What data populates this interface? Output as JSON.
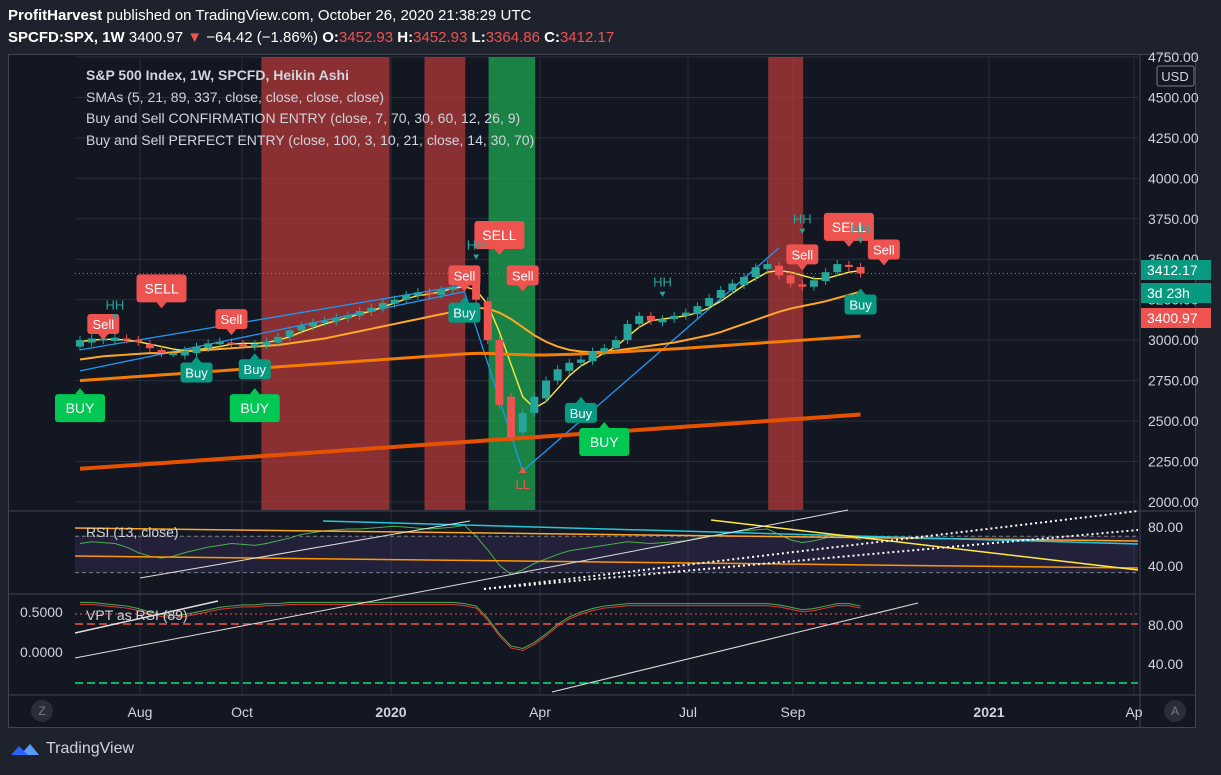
{
  "header": {
    "publisher": "ProfitHarvest",
    "published_text": "published on TradingView.com, October 26, 2020 21:38:29 UTC",
    "symbol": "SPCFD:SPX, 1W",
    "last": "3400.97",
    "change": "−64.42 (−1.86%)",
    "o_label": "O:",
    "o": "3452.93",
    "h_label": "H:",
    "h": "3452.93",
    "l_label": "L:",
    "l": "3364.86",
    "c_label": "C:",
    "c": "3412.17"
  },
  "legend": {
    "line1": "S&P 500 Index, 1W, SPCFD, Heikin Ashi",
    "line2": "SMAs (5, 21, 89, 337, close, close, close, close)",
    "line3": "Buy and Sell CONFIRMATION ENTRY (close, 7, 70, 30, 60, 12, 26, 9)",
    "line4": "Buy and Sell PERFECT ENTRY (close, 100, 3, 10, 21, close, 14, 30, 70)"
  },
  "rsi_label": "RSI (13, close)",
  "vpt_label": "VPT as RSI (89)",
  "footer": {
    "brand": "TradingView"
  },
  "buttons": {
    "z": "Z",
    "a": "A"
  },
  "price_tags": {
    "close": "3412.17",
    "countdown": "3d 23h",
    "last": "3400.97"
  },
  "colors": {
    "background": "#131722",
    "up": "#26a69a",
    "down": "#ef5350",
    "sma5": "#ffeb3b",
    "sma21": "#ffa726",
    "sma89": "#f57c00",
    "sma337": "#e65100",
    "sell_zone": "#b33a3a",
    "buy_zone": "#1e9e4f",
    "trend": "#2196f3"
  },
  "chart_data": {
    "type": "candlestick",
    "title": "S&P 500 Index, 1W, SPCFD, Heikin Ashi",
    "x_ticks": [
      "Aug",
      "Oct",
      "2020",
      "Apr",
      "Jul",
      "Sep",
      "2021",
      "Ap"
    ],
    "y_ticks": [
      2000,
      2250,
      2500,
      2750,
      3000,
      3250,
      3500,
      3750,
      4000,
      4250,
      4500,
      4750
    ],
    "ylim": [
      1950,
      4750
    ],
    "candles_note": "weekly Heikin Ashi candles, Jul 2019 – Oct 2020",
    "candles": [
      [
        2960,
        3000
      ],
      [
        2985,
        3010
      ],
      [
        3000,
        3010
      ],
      [
        2995,
        3015
      ],
      [
        3010,
        3005
      ],
      [
        3000,
        2990
      ],
      [
        2975,
        2950
      ],
      [
        2940,
        2920
      ],
      [
        2920,
        2920
      ],
      [
        2905,
        2935
      ],
      [
        2920,
        2960
      ],
      [
        2950,
        2980
      ],
      [
        2975,
        2990
      ],
      [
        2985,
        2980
      ],
      [
        2975,
        2970
      ],
      [
        2960,
        2975
      ],
      [
        2970,
        2990
      ],
      [
        2985,
        3020
      ],
      [
        3020,
        3060
      ],
      [
        3060,
        3090
      ],
      [
        3085,
        3110
      ],
      [
        3110,
        3120
      ],
      [
        3115,
        3140
      ],
      [
        3135,
        3150
      ],
      [
        3150,
        3180
      ],
      [
        3175,
        3200
      ],
      [
        3195,
        3230
      ],
      [
        3225,
        3250
      ],
      [
        3250,
        3280
      ],
      [
        3275,
        3295
      ],
      [
        3295,
        3285
      ],
      [
        3280,
        3310
      ],
      [
        3310,
        3330
      ],
      [
        3330,
        3370
      ],
      [
        3360,
        3250
      ],
      [
        3240,
        3000
      ],
      [
        3000,
        2600
      ],
      [
        2650,
        2400
      ],
      [
        2430,
        2550
      ],
      [
        2550,
        2650
      ],
      [
        2640,
        2750
      ],
      [
        2750,
        2820
      ],
      [
        2810,
        2860
      ],
      [
        2860,
        2880
      ],
      [
        2870,
        2930
      ],
      [
        2930,
        2950
      ],
      [
        2950,
        3000
      ],
      [
        3000,
        3100
      ],
      [
        3100,
        3150
      ],
      [
        3150,
        3120
      ],
      [
        3110,
        3130
      ],
      [
        3130,
        3150
      ],
      [
        3150,
        3170
      ],
      [
        3160,
        3210
      ],
      [
        3210,
        3260
      ],
      [
        3260,
        3310
      ],
      [
        3310,
        3350
      ],
      [
        3340,
        3390
      ],
      [
        3390,
        3450
      ],
      [
        3440,
        3470
      ],
      [
        3460,
        3400
      ],
      [
        3400,
        3350
      ],
      [
        3345,
        3330
      ],
      [
        3330,
        3370
      ],
      [
        3365,
        3420
      ],
      [
        3420,
        3470
      ],
      [
        3465,
        3452
      ],
      [
        3452,
        3412
      ]
    ],
    "sma_series": [
      {
        "name": "SMA 5",
        "values": [
          2990,
          3000,
          3005,
          3005,
          3000,
          2990,
          2975,
          2960,
          2945,
          2935,
          2940,
          2950,
          2960,
          2975,
          2980,
          2980,
          2985,
          3000,
          3020,
          3050,
          3075,
          3100,
          3120,
          3140,
          3160,
          3180,
          3205,
          3230,
          3255,
          3275,
          3285,
          3300,
          3320,
          3330,
          3310,
          3220,
          3050,
          2850,
          2650,
          2580,
          2620,
          2700,
          2780,
          2840,
          2880,
          2920,
          2960,
          3020,
          3080,
          3120,
          3130,
          3140,
          3150,
          3170,
          3200,
          3240,
          3290,
          3340,
          3380,
          3420,
          3430,
          3420,
          3400,
          3380,
          3380,
          3400,
          3420,
          3430
        ]
      },
      {
        "name": "SMA 21",
        "values": [
          2880,
          2890,
          2900,
          2905,
          2910,
          2915,
          2920,
          2920,
          2925,
          2930,
          2935,
          2940,
          2945,
          2950,
          2955,
          2960,
          2965,
          2970,
          2980,
          2990,
          3000,
          3010,
          3025,
          3040,
          3055,
          3070,
          3085,
          3100,
          3115,
          3130,
          3145,
          3160,
          3175,
          3190,
          3200,
          3195,
          3170,
          3130,
          3080,
          3030,
          2990,
          2960,
          2940,
          2930,
          2925,
          2930,
          2935,
          2945,
          2955,
          2965,
          2975,
          2985,
          3000,
          3015,
          3030,
          3050,
          3075,
          3100,
          3125,
          3150,
          3175,
          3195,
          3210,
          3225,
          3240,
          3260,
          3280,
          3300
        ]
      },
      {
        "name": "SMA 89",
        "values": [
          2750,
          2755,
          2760,
          2765,
          2770,
          2775,
          2780,
          2785,
          2790,
          2795,
          2800,
          2805,
          2810,
          2815,
          2820,
          2825,
          2830,
          2835,
          2840,
          2845,
          2850,
          2855,
          2860,
          2865,
          2870,
          2875,
          2880,
          2885,
          2890,
          2895,
          2900,
          2905,
          2910,
          2915,
          2918,
          2918,
          2915,
          2912,
          2910,
          2908,
          2908,
          2910,
          2912,
          2915,
          2918,
          2922,
          2926,
          2930,
          2934,
          2938,
          2942,
          2946,
          2950,
          2955,
          2960,
          2965,
          2970,
          2975,
          2980,
          2985,
          2990,
          2995,
          3000,
          3005,
          3010,
          3015,
          3020,
          3025
        ]
      },
      {
        "name": "SMA 337",
        "values": [
          2205,
          2210,
          2215,
          2220,
          2225,
          2230,
          2235,
          2240,
          2245,
          2250,
          2255,
          2260,
          2265,
          2270,
          2275,
          2280,
          2285,
          2290,
          2295,
          2300,
          2305,
          2310,
          2315,
          2320,
          2325,
          2330,
          2335,
          2340,
          2345,
          2350,
          2355,
          2360,
          2365,
          2370,
          2375,
          2380,
          2385,
          2390,
          2395,
          2400,
          2405,
          2410,
          2415,
          2420,
          2425,
          2430,
          2435,
          2440,
          2445,
          2450,
          2455,
          2460,
          2465,
          2470,
          2475,
          2480,
          2485,
          2490,
          2495,
          2500,
          2505,
          2510,
          2515,
          2520,
          2525,
          2530,
          2535,
          2540
        ]
      }
    ],
    "signals": [
      {
        "text": "SELL",
        "kind": "sell-big",
        "i": 7,
        "price": 3320
      },
      {
        "text": "Sell",
        "kind": "sell",
        "i": 13,
        "price": 3130
      },
      {
        "text": "Sell",
        "kind": "sell",
        "i": 33,
        "price": 3400
      },
      {
        "text": "SELL",
        "kind": "sell-big",
        "i": 36,
        "price": 3650
      },
      {
        "text": "Sell",
        "kind": "sell",
        "i": 38,
        "price": 3400
      },
      {
        "text": "Sell",
        "kind": "sell",
        "i": 2,
        "price": 3100
      },
      {
        "text": "Buy",
        "kind": "buy",
        "i": 10,
        "price": 2800
      },
      {
        "text": "Buy",
        "kind": "buy",
        "i": 15,
        "price": 2820
      },
      {
        "text": "BUY",
        "kind": "buy-big",
        "i": 15,
        "price": 2580
      },
      {
        "text": "BUY",
        "kind": "buy-big",
        "i": 0,
        "price": 2580
      },
      {
        "text": "Buy",
        "kind": "buy",
        "i": 33,
        "price": 3170
      },
      {
        "text": "Buy",
        "kind": "buy",
        "i": 43,
        "price": 2550
      },
      {
        "text": "BUY",
        "kind": "buy-big",
        "i": 45,
        "price": 2370
      },
      {
        "text": "SELL",
        "kind": "sell-big",
        "i": 66,
        "price": 3700
      },
      {
        "text": "Sell",
        "kind": "sell",
        "i": 62,
        "price": 3530
      },
      {
        "text": "Sell",
        "kind": "sell",
        "i": 69,
        "price": 3560
      },
      {
        "text": "Buy",
        "kind": "buy",
        "i": 67,
        "price": 3220
      }
    ],
    "swing_labels": [
      {
        "text": "HH",
        "i": 3,
        "price": 3190
      },
      {
        "text": "HH",
        "i": 34,
        "price": 3560
      },
      {
        "text": "HH",
        "i": 50,
        "price": 3330
      },
      {
        "text": "HH",
        "i": 62,
        "price": 3720
      },
      {
        "text": "HH",
        "i": 67,
        "price": 3660
      },
      {
        "text": "LL",
        "i": 38,
        "price": 2080
      }
    ],
    "zones": [
      {
        "kind": "sell",
        "from": 16,
        "to": 27
      },
      {
        "kind": "sell",
        "from": 30,
        "to": 33.5
      },
      {
        "kind": "buy",
        "from": 35.5,
        "to": 39.5
      },
      {
        "kind": "sell",
        "from": 59.5,
        "to": 62.5
      }
    ],
    "rsi": {
      "name": "RSI (13, close)",
      "y_ticks": [
        40,
        80
      ],
      "values": [
        62,
        64,
        63,
        62,
        58,
        52,
        48,
        46,
        48,
        52,
        55,
        58,
        60,
        62,
        61,
        60,
        62,
        65,
        68,
        72,
        74,
        76,
        77,
        78,
        78,
        79,
        80,
        81,
        80,
        79,
        78,
        79,
        80,
        82,
        70,
        55,
        38,
        28,
        33,
        40,
        45,
        50,
        54,
        56,
        58,
        60,
        62,
        64,
        63,
        62,
        63,
        64,
        65,
        68,
        70,
        72,
        74,
        76,
        77,
        78,
        72,
        66,
        63,
        65,
        68,
        72,
        70,
        66
      ]
    },
    "vpt": {
      "name": "VPT as RSI (89)",
      "left_ticks": [
        "0.5000",
        "0.0000"
      ],
      "y_ticks": [
        40,
        80
      ],
      "values": [
        98,
        98,
        97,
        96,
        95,
        93,
        90,
        88,
        87,
        88,
        90,
        92,
        94,
        95,
        96,
        96,
        97,
        97,
        98,
        98,
        98,
        98,
        98,
        98,
        98,
        98,
        98,
        98,
        98,
        98,
        98,
        98,
        98,
        97,
        95,
        85,
        72,
        62,
        60,
        65,
        72,
        80,
        86,
        90,
        93,
        95,
        96,
        97,
        97,
        97,
        97,
        97,
        97,
        97,
        97,
        97,
        97,
        97,
        97,
        97,
        96,
        94,
        92,
        93,
        95,
        97,
        97,
        95
      ]
    }
  }
}
